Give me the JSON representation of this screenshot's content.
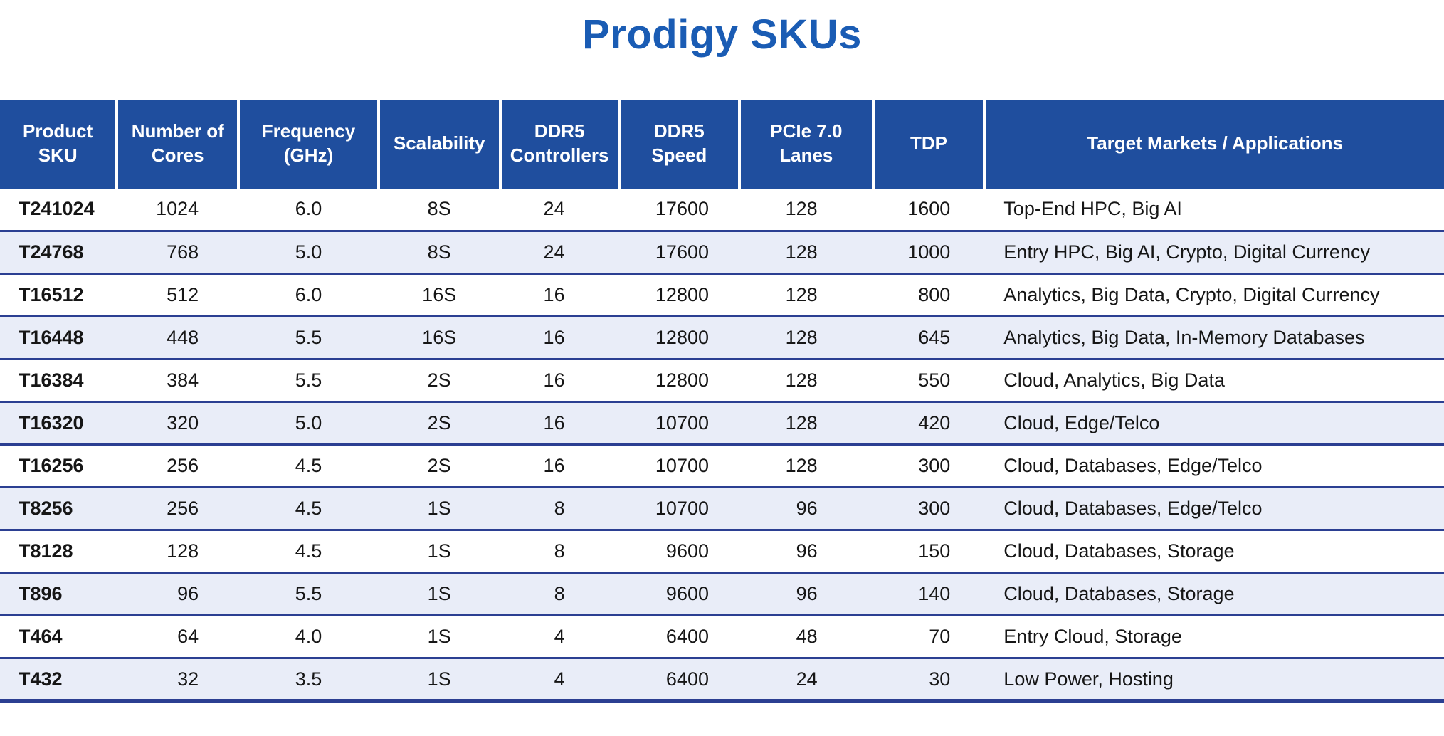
{
  "title": "Prodigy SKUs",
  "chart_data": {
    "type": "table",
    "title": "Prodigy SKUs",
    "columns": [
      "Product\nSKU",
      "Number of\nCores",
      "Frequency\n(GHz)",
      "Scalability",
      "DDR5\nControllers",
      "DDR5\nSpeed",
      "PCIe 7.0\nLanes",
      "TDP",
      "Target Markets / Applications"
    ],
    "rows": [
      [
        "T241024",
        "1024",
        "6.0",
        "8S",
        "24",
        "17600",
        "128",
        "1600",
        "Top-End HPC, Big AI"
      ],
      [
        "T24768",
        "768",
        "5.0",
        "8S",
        "24",
        "17600",
        "128",
        "1000",
        "Entry HPC, Big AI, Crypto, Digital Currency"
      ],
      [
        "T16512",
        "512",
        "6.0",
        "16S",
        "16",
        "12800",
        "128",
        "800",
        "Analytics, Big Data, Crypto, Digital Currency"
      ],
      [
        "T16448",
        "448",
        "5.5",
        "16S",
        "16",
        "12800",
        "128",
        "645",
        "Analytics, Big Data, In-Memory Databases"
      ],
      [
        "T16384",
        "384",
        "5.5",
        "2S",
        "16",
        "12800",
        "128",
        "550",
        "Cloud, Analytics, Big Data"
      ],
      [
        "T16320",
        "320",
        "5.0",
        "2S",
        "16",
        "10700",
        "128",
        "420",
        "Cloud, Edge/Telco"
      ],
      [
        "T16256",
        "256",
        "4.5",
        "2S",
        "16",
        "10700",
        "128",
        "300",
        "Cloud, Databases, Edge/Telco"
      ],
      [
        "T8256",
        "256",
        "4.5",
        "1S",
        "8",
        "10700",
        "96",
        "300",
        "Cloud, Databases, Edge/Telco"
      ],
      [
        "T8128",
        "128",
        "4.5",
        "1S",
        "8",
        "9600",
        "96",
        "150",
        "Cloud, Databases, Storage"
      ],
      [
        "T896",
        "96",
        "5.5",
        "1S",
        "8",
        "9600",
        "96",
        "140",
        "Cloud, Databases, Storage"
      ],
      [
        "T464",
        "64",
        "4.0",
        "1S",
        "4",
        "6400",
        "48",
        "70",
        "Entry Cloud, Storage"
      ],
      [
        "T432",
        "32",
        "3.5",
        "1S",
        "4",
        "6400",
        "24",
        "30",
        "Low Power, Hosting"
      ]
    ]
  },
  "colors": {
    "title": "#1A5CB4",
    "header_bg": "#1F4E9E",
    "header_divider": "#FFFFFF",
    "row_alt_bg": "#E9EDF8",
    "row_divider": "#2B3F92"
  }
}
